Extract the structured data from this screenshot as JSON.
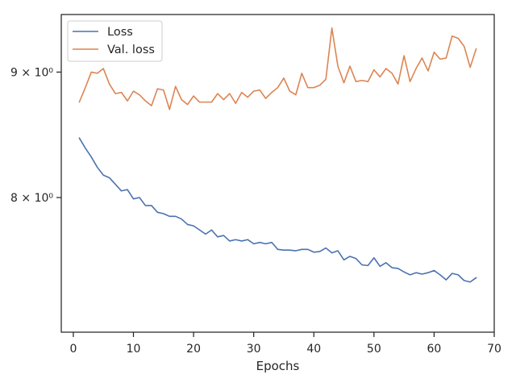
{
  "chart_data": {
    "type": "line",
    "title": "",
    "xlabel": "Epochs",
    "ylabel": "",
    "yscale": "log",
    "xlim": [
      -2,
      70
    ],
    "ylim": [
      7.05,
      9.5
    ],
    "grid": false,
    "legend_placement": "top-left",
    "x_ticks": [
      0,
      10,
      20,
      30,
      40,
      50,
      60,
      70
    ],
    "x_tick_labels": [
      "0",
      "10",
      "20",
      "30",
      "40",
      "50",
      "60",
      "70"
    ],
    "y_ticks": [
      8,
      9
    ],
    "y_tick_labels": [
      "8 × 10⁰",
      "9 × 10⁰"
    ],
    "x": [
      1,
      2,
      3,
      4,
      5,
      6,
      7,
      8,
      9,
      10,
      11,
      12,
      13,
      14,
      15,
      16,
      17,
      18,
      19,
      20,
      21,
      22,
      23,
      24,
      25,
      26,
      27,
      28,
      29,
      30,
      31,
      32,
      33,
      34,
      35,
      36,
      37,
      38,
      39,
      40,
      41,
      42,
      43,
      44,
      45,
      46,
      47,
      48,
      49,
      50,
      51,
      52,
      53,
      54,
      55,
      56,
      57,
      58,
      59,
      60,
      61,
      62,
      63,
      64,
      65,
      66,
      67
    ],
    "series": [
      {
        "name": "Loss",
        "color": "#4c72b0",
        "values": [
          8.46,
          8.38,
          8.31,
          8.23,
          8.17,
          8.15,
          8.1,
          8.05,
          8.06,
          7.99,
          8.0,
          7.94,
          7.94,
          7.89,
          7.88,
          7.86,
          7.86,
          7.84,
          7.8,
          7.79,
          7.76,
          7.73,
          7.76,
          7.71,
          7.72,
          7.68,
          7.69,
          7.68,
          7.69,
          7.66,
          7.67,
          7.66,
          7.67,
          7.62,
          7.615,
          7.615,
          7.61,
          7.62,
          7.62,
          7.6,
          7.605,
          7.63,
          7.595,
          7.61,
          7.545,
          7.57,
          7.555,
          7.51,
          7.505,
          7.56,
          7.5,
          7.525,
          7.49,
          7.485,
          7.46,
          7.44,
          7.455,
          7.445,
          7.455,
          7.47,
          7.44,
          7.405,
          7.45,
          7.44,
          7.4,
          7.39,
          7.42
        ]
      },
      {
        "name": "Val. loss",
        "color": "#dd8452",
        "values": [
          8.75,
          8.87,
          9.0,
          8.99,
          9.03,
          8.9,
          8.82,
          8.83,
          8.76,
          8.84,
          8.81,
          8.76,
          8.72,
          8.86,
          8.85,
          8.69,
          8.88,
          8.77,
          8.73,
          8.8,
          8.75,
          8.75,
          8.75,
          8.82,
          8.77,
          8.82,
          8.74,
          8.83,
          8.79,
          8.84,
          8.85,
          8.78,
          8.83,
          8.87,
          8.95,
          8.84,
          8.81,
          8.99,
          8.87,
          8.87,
          8.89,
          8.94,
          9.38,
          9.05,
          8.91,
          9.05,
          8.92,
          8.93,
          8.92,
          9.02,
          8.96,
          9.03,
          8.99,
          8.9,
          9.14,
          8.92,
          9.03,
          9.12,
          9.01,
          9.17,
          9.11,
          9.12,
          9.31,
          9.29,
          9.22,
          9.04,
          9.2
        ]
      }
    ]
  }
}
